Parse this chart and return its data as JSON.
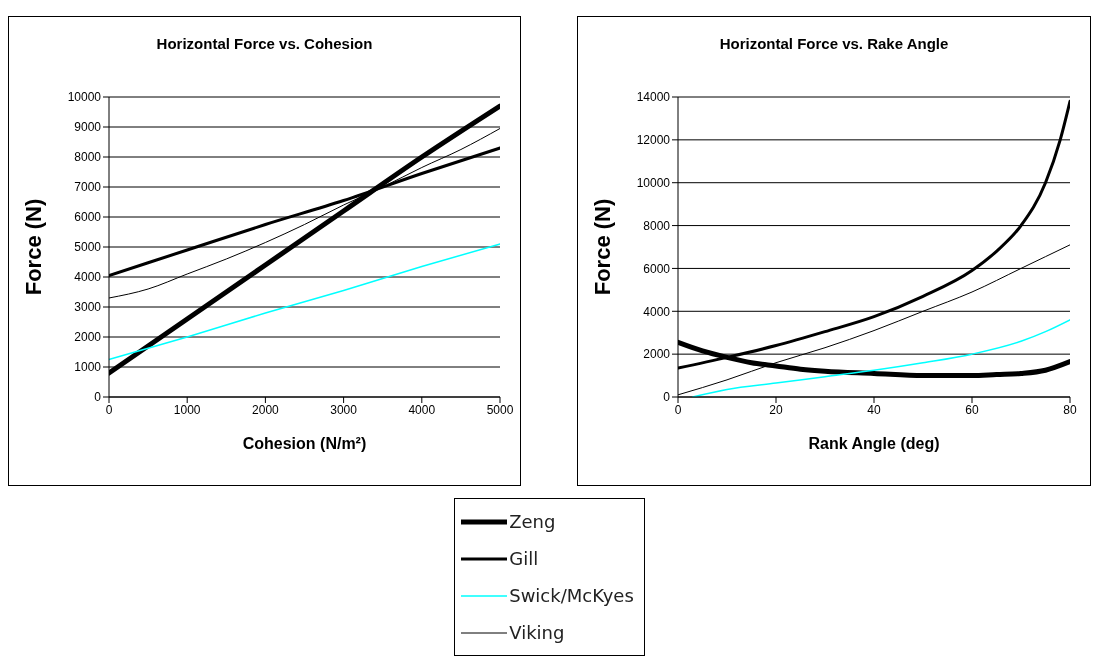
{
  "chart_data": [
    {
      "type": "line",
      "title": "Horizontal Force vs. Cohesion",
      "xlabel": "Cohesion (N/m²)",
      "ylabel": "Force (N)",
      "xlim": [
        0,
        5000
      ],
      "xticks": [
        0,
        1000,
        2000,
        3000,
        4000,
        5000
      ],
      "ylim": [
        0,
        10000
      ],
      "yticks": [
        0,
        1000,
        2000,
        3000,
        4000,
        5000,
        6000,
        7000,
        8000,
        9000,
        10000
      ],
      "grid": "y",
      "legend": "bottom",
      "marker": "none",
      "line_style": "solid",
      "series": [
        {
          "name": "Zeng",
          "color": "#000000",
          "x": [
            0,
            1000,
            2000,
            3000,
            4000,
            5000
          ],
          "values": [
            800,
            2600,
            4400,
            6200,
            8000,
            9700
          ]
        },
        {
          "name": "Gill",
          "color": "#000000",
          "x": [
            0,
            1000,
            2000,
            3000,
            4000,
            5000
          ],
          "values": [
            4050,
            4900,
            5750,
            6550,
            7450,
            8300
          ]
        },
        {
          "name": "Swick/McKyes",
          "color": "#00ffff",
          "x": [
            0,
            1000,
            2000,
            3000,
            4000,
            5000
          ],
          "values": [
            1250,
            2000,
            2800,
            3550,
            4350,
            5100
          ]
        },
        {
          "name": "Viking",
          "color": "#000000",
          "x": [
            0,
            500,
            1000,
            1500,
            2000,
            2500,
            3000,
            3500,
            4000,
            4500,
            5000
          ],
          "values": [
            3300,
            3600,
            4100,
            4600,
            5150,
            5750,
            6400,
            7000,
            7650,
            8250,
            8950
          ]
        }
      ]
    },
    {
      "type": "line",
      "title": "Horizontal Force vs. Rake Angle",
      "xlabel": "Rank Angle (deg)",
      "ylabel": "Force (N)",
      "xlim": [
        0,
        80
      ],
      "xticks": [
        0,
        20,
        40,
        60,
        80
      ],
      "ylim": [
        0,
        14000
      ],
      "yticks": [
        0,
        2000,
        4000,
        6000,
        8000,
        10000,
        12000,
        14000
      ],
      "grid": "y",
      "marker": "none",
      "line_style": "solid",
      "series": [
        {
          "color": "#000000",
          "x": [
            0,
            5,
            10,
            15,
            20,
            25,
            30,
            40,
            50,
            60,
            65,
            70,
            75,
            80
          ],
          "values": [
            2550,
            2150,
            1850,
            1600,
            1450,
            1300,
            1200,
            1100,
            1000,
            1000,
            1050,
            1100,
            1250,
            1650
          ]
        },
        {
          "color": "#000000",
          "x": [
            0,
            10,
            20,
            30,
            40,
            50,
            60,
            65,
            70,
            75,
            78,
            80
          ],
          "values": [
            1350,
            1850,
            2400,
            3050,
            3750,
            4700,
            5900,
            6800,
            8000,
            10000,
            12000,
            13800
          ]
        },
        {
          "color": "#00ffff",
          "x": [
            3,
            10,
            20,
            30,
            40,
            50,
            60,
            70,
            75,
            80
          ],
          "values": [
            0,
            350,
            650,
            950,
            1250,
            1600,
            2000,
            2600,
            3050,
            3600
          ]
        },
        {
          "color": "#000000",
          "x": [
            0,
            10,
            20,
            30,
            40,
            50,
            60,
            70,
            80
          ],
          "values": [
            100,
            800,
            1600,
            2300,
            3100,
            4000,
            4900,
            6000,
            7100
          ]
        }
      ]
    }
  ]
}
